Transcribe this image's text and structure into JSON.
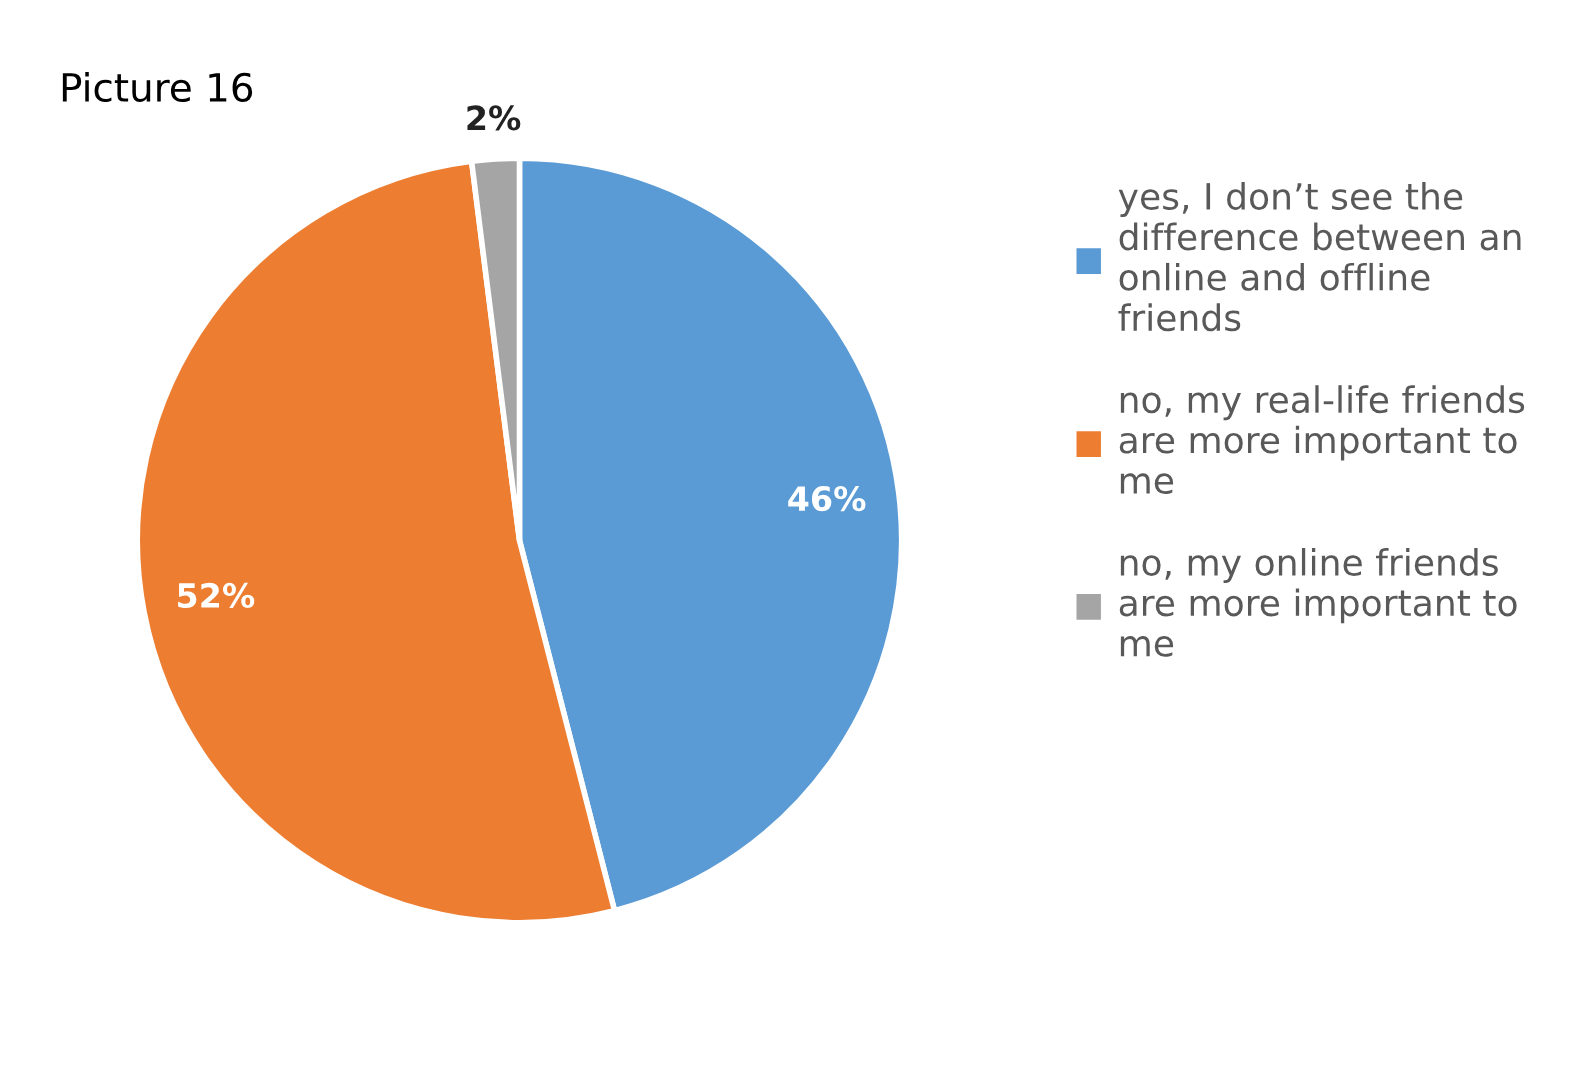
{
  "chart_data": {
    "type": "pie",
    "title": "Picture 16",
    "categories": [
      "yes, I don’t see the\ndifference between an\nonline and offline\nfriends",
      "no, my real-life friends\nare more important to\nme",
      "no, my online friends\nare more important to\nme"
    ],
    "values": [
      46,
      52,
      2
    ],
    "colors": [
      "#5b9bd5",
      "#ed7d31",
      "#a5a5a5"
    ],
    "value_labels": [
      "46%",
      "52%",
      "2%"
    ],
    "legend": "right"
  }
}
